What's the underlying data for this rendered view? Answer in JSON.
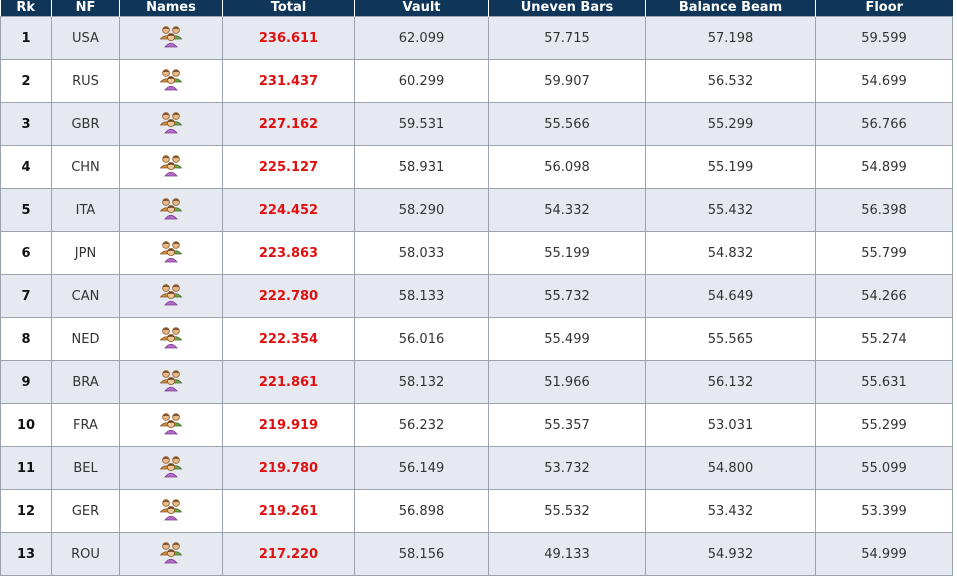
{
  "headers": {
    "rk": "Rk",
    "nf": "NF",
    "names": "Names",
    "total": "Total",
    "vault": "Vault",
    "uneven_bars": "Uneven Bars",
    "balance_beam": "Balance Beam",
    "floor": "Floor"
  },
  "names_icon": "group-people-icon",
  "colors": {
    "header_bg": "#0f3558",
    "total_text": "#e01010",
    "row_alt": "#e6e9f0"
  },
  "rows": [
    {
      "rk": "1",
      "nf": "USA",
      "total": "236.611",
      "vault": "62.099",
      "uneven_bars": "57.715",
      "balance_beam": "57.198",
      "floor": "59.599"
    },
    {
      "rk": "2",
      "nf": "RUS",
      "total": "231.437",
      "vault": "60.299",
      "uneven_bars": "59.907",
      "balance_beam": "56.532",
      "floor": "54.699"
    },
    {
      "rk": "3",
      "nf": "GBR",
      "total": "227.162",
      "vault": "59.531",
      "uneven_bars": "55.566",
      "balance_beam": "55.299",
      "floor": "56.766"
    },
    {
      "rk": "4",
      "nf": "CHN",
      "total": "225.127",
      "vault": "58.931",
      "uneven_bars": "56.098",
      "balance_beam": "55.199",
      "floor": "54.899"
    },
    {
      "rk": "5",
      "nf": "ITA",
      "total": "224.452",
      "vault": "58.290",
      "uneven_bars": "54.332",
      "balance_beam": "55.432",
      "floor": "56.398"
    },
    {
      "rk": "6",
      "nf": "JPN",
      "total": "223.863",
      "vault": "58.033",
      "uneven_bars": "55.199",
      "balance_beam": "54.832",
      "floor": "55.799"
    },
    {
      "rk": "7",
      "nf": "CAN",
      "total": "222.780",
      "vault": "58.133",
      "uneven_bars": "55.732",
      "balance_beam": "54.649",
      "floor": "54.266"
    },
    {
      "rk": "8",
      "nf": "NED",
      "total": "222.354",
      "vault": "56.016",
      "uneven_bars": "55.499",
      "balance_beam": "55.565",
      "floor": "55.274"
    },
    {
      "rk": "9",
      "nf": "BRA",
      "total": "221.861",
      "vault": "58.132",
      "uneven_bars": "51.966",
      "balance_beam": "56.132",
      "floor": "55.631"
    },
    {
      "rk": "10",
      "nf": "FRA",
      "total": "219.919",
      "vault": "56.232",
      "uneven_bars": "55.357",
      "balance_beam": "53.031",
      "floor": "55.299"
    },
    {
      "rk": "11",
      "nf": "BEL",
      "total": "219.780",
      "vault": "56.149",
      "uneven_bars": "53.732",
      "balance_beam": "54.800",
      "floor": "55.099"
    },
    {
      "rk": "12",
      "nf": "GER",
      "total": "219.261",
      "vault": "56.898",
      "uneven_bars": "55.532",
      "balance_beam": "53.432",
      "floor": "53.399"
    },
    {
      "rk": "13",
      "nf": "ROU",
      "total": "217.220",
      "vault": "58.156",
      "uneven_bars": "49.133",
      "balance_beam": "54.932",
      "floor": "54.999"
    }
  ]
}
